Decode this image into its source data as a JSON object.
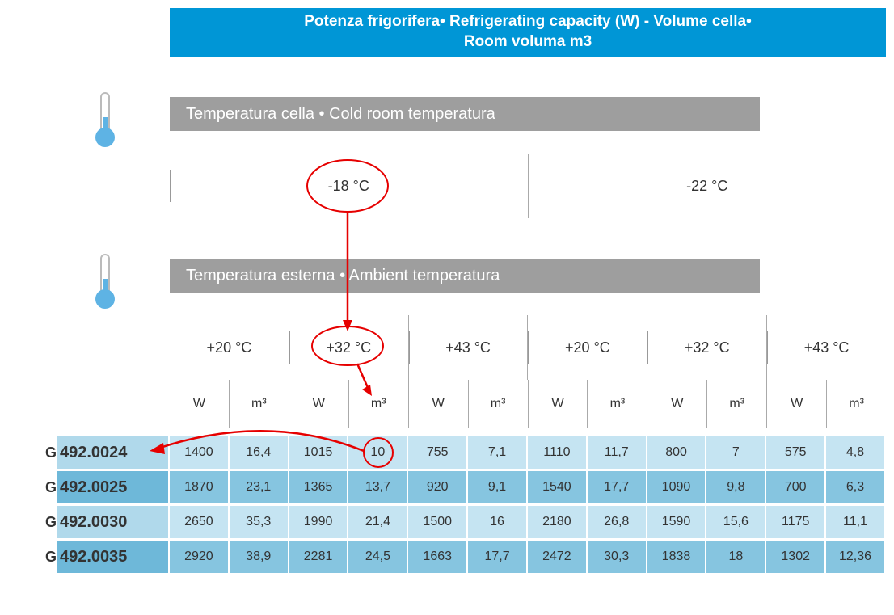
{
  "title_line1": "Potenza frigorifera•  Refrigerating capacity (W) - Volume cella•",
  "title_line2": "Room voluma m3",
  "cold_label": "Temperatura cella  •  Cold room temperatura",
  "ambient_label": "Temperatura esterna  •  Ambient temperatura",
  "cold_temps": [
    "-18 °C",
    "-22 °C"
  ],
  "ambient_temps": [
    "+20 °C",
    "+32 °C",
    "+43 °C",
    "+20 °C",
    "+32 °C",
    "+43 °C"
  ],
  "unit_headers": [
    "W",
    "m³",
    "W",
    "m³",
    "W",
    "m³",
    "W",
    "m³",
    "W",
    "m³",
    "W",
    "m³"
  ],
  "rows": [
    {
      "g": "G",
      "code": "492.0024",
      "cells": [
        "1400",
        "16,4",
        "1015",
        "10",
        "755",
        "7,1",
        "1110",
        "11,7",
        "800",
        "7",
        "575",
        "4,8"
      ]
    },
    {
      "g": "G",
      "code": "492.0025",
      "cells": [
        "1870",
        "23,1",
        "1365",
        "13,7",
        "920",
        "9,1",
        "1540",
        "17,7",
        "1090",
        "9,8",
        "700",
        "6,3"
      ]
    },
    {
      "g": "G",
      "code": "492.0030",
      "cells": [
        "2650",
        "35,3",
        "1990",
        "21,4",
        "1500",
        "16",
        "2180",
        "26,8",
        "1590",
        "15,6",
        "1175",
        "11,1"
      ]
    },
    {
      "g": "G",
      "code": "492.0035",
      "cells": [
        "2920",
        "38,9",
        "2281",
        "24,5",
        "1663",
        "17,7",
        "2472",
        "30,3",
        "1838",
        "18",
        "1302",
        "12,36"
      ]
    }
  ],
  "colors": {
    "banner": "#0096d6",
    "gray": "#9e9e9e",
    "light_blue": "#c5e4f2",
    "mid_blue": "#86c5e0",
    "code_light": "#b0d9eb",
    "code_mid": "#6eb8d9",
    "annotation": "#e60000",
    "thermo_fill": "#5eb3e4",
    "thermo_stroke": "#bbbbbb"
  },
  "row_colors": [
    "light",
    "mid",
    "light",
    "mid"
  ]
}
